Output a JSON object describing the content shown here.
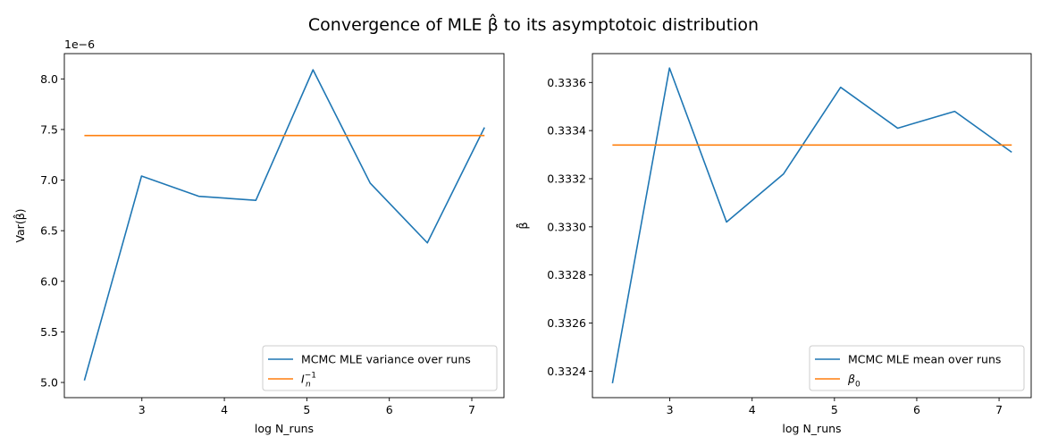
{
  "figure": {
    "suptitle": "Convergence of MLE β̂ to its asymptotoic distribution",
    "colors": {
      "series1": "#1f77b4",
      "series2": "#ff7f0e",
      "axis": "#000000",
      "legend_border": "#cccccc"
    }
  },
  "chart_data": [
    {
      "type": "line",
      "xlabel": "log N_runs",
      "ylabel": "Var(β̂)",
      "y_offset_label": "1e−6",
      "xlim": [
        2.06,
        7.39
      ],
      "ylim": [
        4.85,
        8.25
      ],
      "xticks": [
        3,
        4,
        5,
        6,
        7
      ],
      "xtick_labels": [
        "3",
        "4",
        "5",
        "6",
        "7"
      ],
      "yticks": [
        5.0,
        5.5,
        6.0,
        6.5,
        7.0,
        7.5,
        8.0
      ],
      "ytick_labels": [
        "5.0",
        "5.5",
        "6.0",
        "6.5",
        "7.0",
        "7.5",
        "8.0"
      ],
      "legend_position": "lower right",
      "grid": false,
      "series": [
        {
          "name": "MCMC MLE variance over runs",
          "color": "#1f77b4",
          "x": [
            2.303,
            2.996,
            3.689,
            4.382,
            5.075,
            5.768,
            6.461,
            7.154
          ],
          "y": [
            5.02,
            7.04,
            6.84,
            6.8,
            8.09,
            6.97,
            6.38,
            7.52
          ]
        },
        {
          "name": "I_n^{-1}",
          "legend_main": "I",
          "legend_sub": "n",
          "legend_sup": "−1",
          "color": "#ff7f0e",
          "x": [
            2.303,
            7.154
          ],
          "y": [
            7.44,
            7.44
          ]
        }
      ]
    },
    {
      "type": "line",
      "xlabel": "log N_runs",
      "ylabel": "β̂̄",
      "xlim": [
        2.06,
        7.39
      ],
      "ylim": [
        0.33229,
        0.33372
      ],
      "xticks": [
        3,
        4,
        5,
        6,
        7
      ],
      "xtick_labels": [
        "3",
        "4",
        "5",
        "6",
        "7"
      ],
      "yticks": [
        0.3324,
        0.3326,
        0.3328,
        0.333,
        0.3332,
        0.3334,
        0.3336
      ],
      "ytick_labels": [
        "0.3324",
        "0.3326",
        "0.3328",
        "0.3330",
        "0.3332",
        "0.3334",
        "0.3336"
      ],
      "legend_position": "lower right",
      "grid": false,
      "series": [
        {
          "name": "MCMC MLE mean over runs",
          "color": "#1f77b4",
          "x": [
            2.303,
            2.996,
            3.689,
            4.382,
            5.075,
            5.768,
            6.461,
            7.154
          ],
          "y": [
            0.33235,
            0.33366,
            0.33302,
            0.33322,
            0.33358,
            0.33341,
            0.33348,
            0.33331
          ]
        },
        {
          "name": "β₀",
          "legend_main": "β",
          "legend_sub": "0",
          "legend_sup": "",
          "color": "#ff7f0e",
          "x": [
            2.303,
            7.154
          ],
          "y": [
            0.33334,
            0.33334
          ]
        }
      ]
    }
  ]
}
